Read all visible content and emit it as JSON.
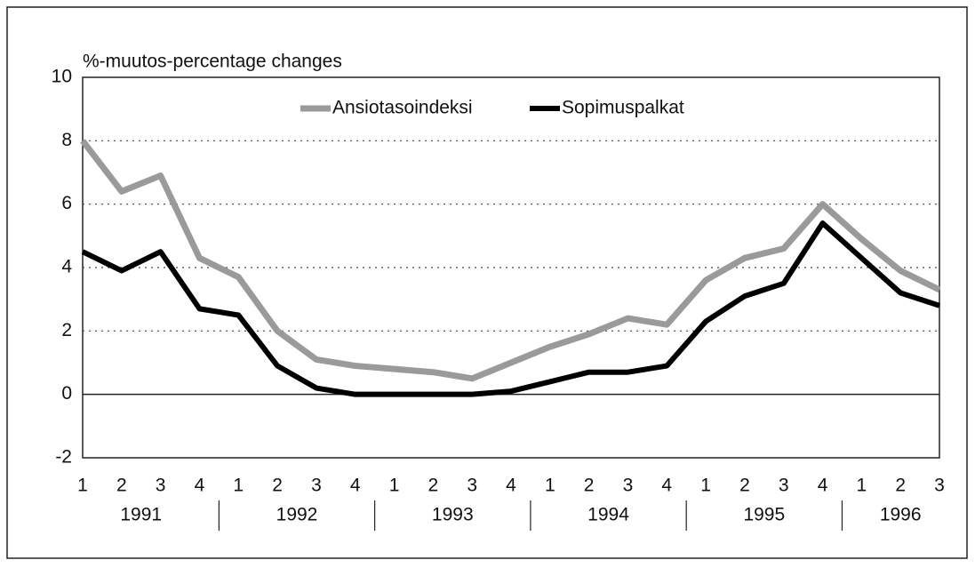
{
  "chart_data": {
    "type": "line",
    "y_axis_label": "%-muutos-percentage changes",
    "categories": [
      "1",
      "2",
      "3",
      "4",
      "1",
      "2",
      "3",
      "4",
      "1",
      "2",
      "3",
      "4",
      "1",
      "2",
      "3",
      "4",
      "1",
      "2",
      "3",
      "4",
      "1",
      "2",
      "3"
    ],
    "category_groups": [
      "1991",
      "1992",
      "1993",
      "1994",
      "1995",
      "1996"
    ],
    "series": [
      {
        "name": "Ansiotasoindeksi",
        "color": "#9a9a9a",
        "values": [
          8.0,
          6.4,
          6.9,
          4.3,
          3.7,
          2.0,
          1.1,
          0.9,
          0.8,
          0.7,
          0.5,
          1.0,
          1.5,
          1.9,
          2.4,
          2.2,
          3.6,
          4.3,
          4.6,
          6.0,
          4.9,
          3.9,
          3.3
        ]
      },
      {
        "name": "Sopimuspalkat",
        "color": "#000000",
        "values": [
          4.5,
          3.9,
          4.5,
          2.7,
          2.5,
          0.9,
          0.2,
          0.0,
          0.0,
          0.0,
          0.0,
          0.1,
          0.4,
          0.7,
          0.7,
          0.9,
          2.3,
          3.1,
          3.5,
          5.4,
          4.3,
          3.2,
          2.8
        ]
      }
    ],
    "ylim": [
      -2,
      10
    ],
    "yticks": [
      -2,
      0,
      2,
      4,
      6,
      8,
      10
    ],
    "grid": true
  }
}
